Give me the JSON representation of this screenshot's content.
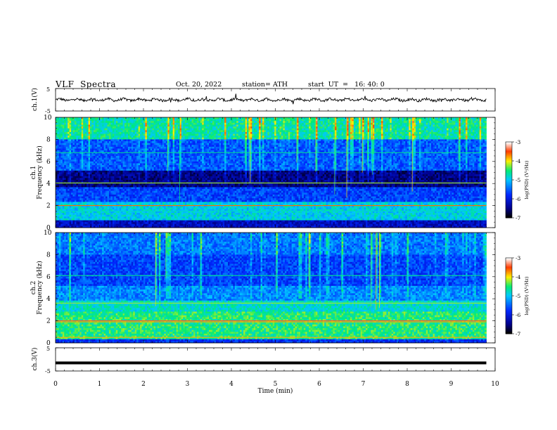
{
  "header": {
    "title": "VLF  Spectra",
    "date": "Oct. 20, 2022",
    "station": "station= ATH",
    "start": "start  UT  =   16: 40: 0"
  },
  "chart_data": [
    {
      "type": "line",
      "id": "ch1-waveform",
      "ylabel": "ch.1(V)",
      "yticks": [
        "5",
        "-5"
      ],
      "ylim": [
        -5,
        5
      ],
      "xlim": [
        0,
        10
      ],
      "data_extent_min": 9.8,
      "series": [
        {
          "baseline": 0,
          "amplitude_approx": 0.8
        }
      ]
    },
    {
      "type": "heatmap",
      "id": "ch1-spectrogram",
      "ylabel": "ch.1\nFrequency (kHz)",
      "ylim": [
        0,
        10
      ],
      "yticks": [
        "0",
        "2",
        "4",
        "6",
        "8",
        "10"
      ],
      "xlim": [
        0,
        10
      ],
      "data_extent_min": 9.8,
      "colorbar": {
        "label": "log(PSD) (V²/Hz)",
        "ticks": [
          "-3",
          "-4",
          "-5",
          "-6",
          "-7"
        ],
        "range": [
          -7,
          -3
        ]
      }
    },
    {
      "type": "heatmap",
      "id": "ch2-spectrogram",
      "ylabel": "ch.2\nFrequency (kHz)",
      "ylim": [
        0,
        10
      ],
      "yticks": [
        "0",
        "2",
        "4",
        "6",
        "8",
        "10"
      ],
      "xlim": [
        0,
        10
      ],
      "data_extent_min": 9.8,
      "colorbar": {
        "label": "log(PSD) (V²/Hz)",
        "ticks": [
          "-3",
          "-4",
          "-5",
          "-6",
          "-7"
        ],
        "range": [
          -7,
          -3
        ]
      }
    },
    {
      "type": "line",
      "id": "ch3-waveform",
      "ylabel": "ch.3(V)",
      "yticks": [
        "5",
        "-5"
      ],
      "ylim": [
        -5,
        5
      ],
      "xlim": [
        0,
        10
      ],
      "data_extent_min": 9.8,
      "series": [
        {
          "baseline": -1.5,
          "amplitude_approx": 0.1
        }
      ]
    }
  ],
  "xaxis": {
    "label": "Time  (min)",
    "ticks": [
      "0",
      "1",
      "2",
      "3",
      "4",
      "5",
      "6",
      "7",
      "8",
      "9",
      "10"
    ]
  }
}
